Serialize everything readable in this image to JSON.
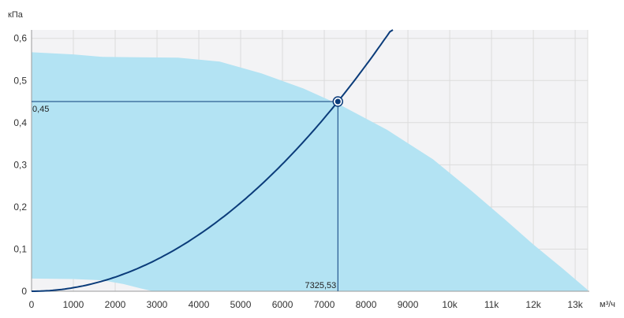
{
  "chart_data": {
    "type": "line",
    "y_unit": "кПа",
    "x_unit": "м³/ч",
    "xlim": [
      0,
      13300
    ],
    "ylim": [
      0,
      0.62
    ],
    "grid": true,
    "x_ticks": [
      {
        "value": 0,
        "label": "0"
      },
      {
        "value": 1000,
        "label": "1000"
      },
      {
        "value": 2000,
        "label": "2000"
      },
      {
        "value": 3000,
        "label": "3000"
      },
      {
        "value": 4000,
        "label": "4000"
      },
      {
        "value": 5000,
        "label": "5000"
      },
      {
        "value": 6000,
        "label": "6000"
      },
      {
        "value": 7000,
        "label": "7000"
      },
      {
        "value": 8000,
        "label": "8000"
      },
      {
        "value": 9000,
        "label": "9000"
      },
      {
        "value": 10000,
        "label": "10k"
      },
      {
        "value": 11000,
        "label": "11k"
      },
      {
        "value": 12000,
        "label": "12k"
      },
      {
        "value": 13000,
        "label": "13k"
      }
    ],
    "y_ticks": [
      {
        "value": 0,
        "label": "0"
      },
      {
        "value": 0.1,
        "label": "0,1"
      },
      {
        "value": 0.2,
        "label": "0,2"
      },
      {
        "value": 0.3,
        "label": "0,3"
      },
      {
        "value": 0.4,
        "label": "0,4"
      },
      {
        "value": 0.5,
        "label": "0,5"
      },
      {
        "value": 0.6,
        "label": "0,6"
      }
    ],
    "operating_area": {
      "color": "#b3e3f3",
      "upper": [
        {
          "x": 0,
          "y": 0.567
        },
        {
          "x": 1000,
          "y": 0.562
        },
        {
          "x": 1700,
          "y": 0.556
        },
        {
          "x": 2500,
          "y": 0.555
        },
        {
          "x": 3500,
          "y": 0.554
        },
        {
          "x": 4500,
          "y": 0.545
        },
        {
          "x": 5500,
          "y": 0.517
        },
        {
          "x": 6500,
          "y": 0.481
        },
        {
          "x": 7400,
          "y": 0.441
        },
        {
          "x": 8500,
          "y": 0.383
        },
        {
          "x": 9600,
          "y": 0.313
        },
        {
          "x": 10500,
          "y": 0.24
        },
        {
          "x": 11300,
          "y": 0.172
        },
        {
          "x": 12000,
          "y": 0.111
        },
        {
          "x": 12700,
          "y": 0.054
        },
        {
          "x": 13300,
          "y": 0.003
        }
      ],
      "lower": [
        {
          "x": 0,
          "y": 0.03
        },
        {
          "x": 1000,
          "y": 0.029
        },
        {
          "x": 1700,
          "y": 0.026
        },
        {
          "x": 2200,
          "y": 0.017
        },
        {
          "x": 2600,
          "y": 0.007
        },
        {
          "x": 2900,
          "y": 0.0
        }
      ]
    },
    "series": [
      {
        "color": "#0b3c7a",
        "points": [
          {
            "x": 0,
            "y": 0.0
          },
          {
            "x": 1000,
            "y": 0.0084
          },
          {
            "x": 2000,
            "y": 0.0335
          },
          {
            "x": 3000,
            "y": 0.0754
          },
          {
            "x": 4000,
            "y": 0.1341
          },
          {
            "x": 5000,
            "y": 0.2096
          },
          {
            "x": 6000,
            "y": 0.3018
          },
          {
            "x": 7000,
            "y": 0.4108
          },
          {
            "x": 7325.53,
            "y": 0.45
          },
          {
            "x": 8000,
            "y": 0.5366
          },
          {
            "x": 8640,
            "y": 0.625
          }
        ]
      }
    ],
    "operating_point": {
      "x": 7325.53,
      "y": 0.45,
      "x_label": "7325,53",
      "y_label": "0,45"
    }
  }
}
